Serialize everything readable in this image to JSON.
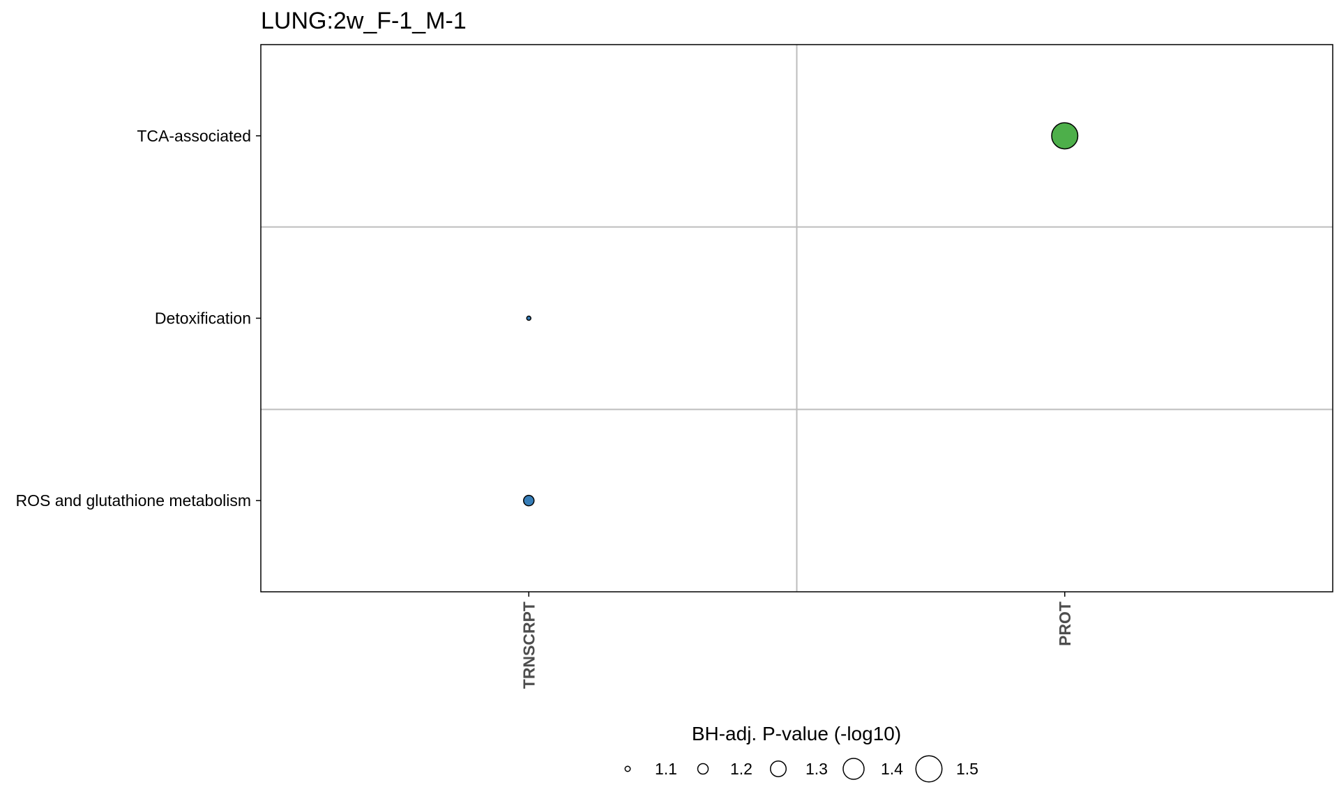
{
  "chart_data": {
    "type": "scatter",
    "title": "LUNG:2w_F-1_M-1",
    "x_categories": [
      "TRNSCRPT",
      "PROT"
    ],
    "y_categories": [
      "TCA-associated",
      "Detoxification",
      "ROS and glutathione metabolism"
    ],
    "points": [
      {
        "x": "PROT",
        "y": "TCA-associated",
        "size_value": 1.5,
        "color": "#4daf4a"
      },
      {
        "x": "TRNSCRPT",
        "y": "Detoxification",
        "size_value": 1.03,
        "color": "#377eb8"
      },
      {
        "x": "TRNSCRPT",
        "y": "ROS and glutathione metabolism",
        "size_value": 1.2,
        "color": "#377eb8"
      }
    ],
    "legend": {
      "title": "BH-adj. P-value (-log10)",
      "position": "bottom",
      "breaks": [
        1.1,
        1.2,
        1.3,
        1.4,
        1.5
      ],
      "labels": [
        "1.1",
        "1.2",
        "1.3",
        "1.4",
        "1.5"
      ]
    },
    "grid": true,
    "panel_border": true,
    "colors": {
      "panel_border": "#000000",
      "grid": "#bdbdbd",
      "x_tick_label": "#4d4d4d"
    }
  }
}
